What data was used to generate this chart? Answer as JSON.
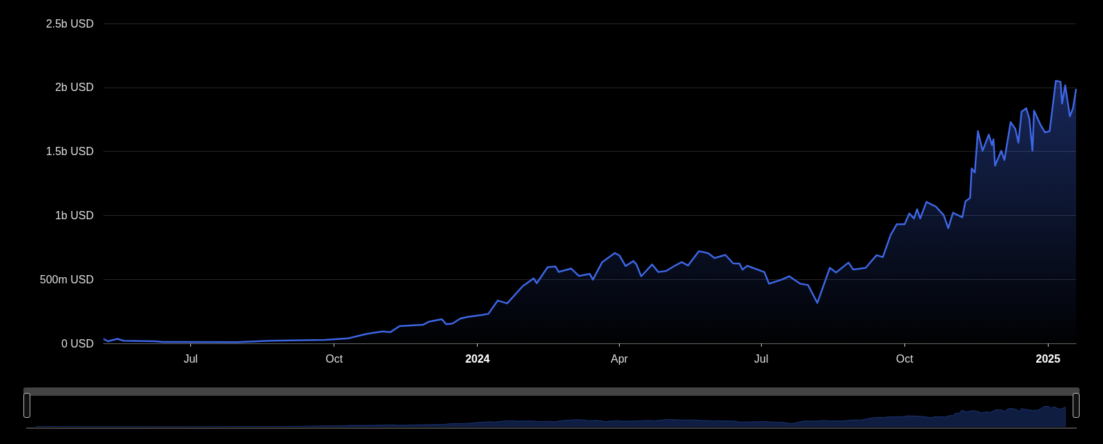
{
  "chart_data": {
    "type": "area",
    "xlim": [
      "2023-05-06",
      "2025-01-19"
    ],
    "xticks": [
      {
        "value": "2023-07-01",
        "label": "Jul"
      },
      {
        "value": "2023-10-01",
        "label": "Oct"
      },
      {
        "value": "2024-01-01",
        "label": "2024"
      },
      {
        "value": "2024-04-01",
        "label": "Apr"
      },
      {
        "value": "2024-07-01",
        "label": "Jul"
      },
      {
        "value": "2024-10-01",
        "label": "Oct"
      },
      {
        "value": "2025-01-01",
        "label": "2025"
      }
    ],
    "ylim": [
      0,
      2500000000
    ],
    "yticks": [
      {
        "value": 0,
        "label": "0 USD"
      },
      {
        "value": 500000000,
        "label": "500m USD"
      },
      {
        "value": 1000000000,
        "label": "1b USD"
      },
      {
        "value": 1500000000,
        "label": "1.5b USD"
      },
      {
        "value": 2000000000,
        "label": "2b USD"
      },
      {
        "value": 2500000000,
        "label": "2.5b USD"
      }
    ],
    "grid": "y",
    "series": [
      {
        "color": "#3d66e6",
        "x": [
          "2023-05-06",
          "2023-05-09",
          "2023-05-15",
          "2023-05-19",
          "2023-06-08",
          "2023-06-13",
          "2023-07-31",
          "2023-08-21",
          "2023-09-25",
          "2023-10-10",
          "2023-10-22",
          "2023-11-01",
          "2023-11-06",
          "2023-11-12",
          "2023-11-27",
          "2023-12-01",
          "2023-12-09",
          "2023-12-12",
          "2023-12-16",
          "2023-12-21",
          "2023-12-26",
          "2024-01-04",
          "2024-01-08",
          "2024-01-14",
          "2024-01-20",
          "2024-01-30",
          "2024-02-06",
          "2024-02-08",
          "2024-02-15",
          "2024-02-20",
          "2024-02-22",
          "2024-03-01",
          "2024-03-06",
          "2024-03-13",
          "2024-03-15",
          "2024-03-21",
          "2024-03-29",
          "2024-04-01",
          "2024-04-05",
          "2024-04-10",
          "2024-04-12",
          "2024-04-15",
          "2024-04-22",
          "2024-04-26",
          "2024-05-01",
          "2024-05-07",
          "2024-05-11",
          "2024-05-15",
          "2024-05-22",
          "2024-05-28",
          "2024-06-01",
          "2024-06-08",
          "2024-06-13",
          "2024-06-17",
          "2024-06-19",
          "2024-06-22",
          "2024-07-03",
          "2024-07-06",
          "2024-07-14",
          "2024-07-19",
          "2024-07-26",
          "2024-07-31",
          "2024-08-06",
          "2024-08-14",
          "2024-08-18",
          "2024-08-26",
          "2024-08-29",
          "2024-09-06",
          "2024-09-13",
          "2024-09-17",
          "2024-09-22",
          "2024-09-26",
          "2024-10-01",
          "2024-10-04",
          "2024-10-07",
          "2024-10-09",
          "2024-10-11",
          "2024-10-15",
          "2024-10-21",
          "2024-10-26",
          "2024-10-29",
          "2024-11-01",
          "2024-11-07",
          "2024-11-09",
          "2024-11-12",
          "2024-11-13",
          "2024-11-15",
          "2024-11-17",
          "2024-11-20",
          "2024-11-24",
          "2024-11-26",
          "2024-11-27",
          "2024-11-28",
          "2024-12-02",
          "2024-12-04",
          "2024-12-08",
          "2024-12-11",
          "2024-12-13",
          "2024-12-15",
          "2024-12-18",
          "2024-12-20",
          "2024-12-22",
          "2024-12-23",
          "2024-12-27",
          "2024-12-30",
          "2025-01-02",
          "2025-01-06",
          "2025-01-09",
          "2025-01-10",
          "2025-01-12",
          "2025-01-15",
          "2025-01-17",
          "2025-01-19"
        ],
        "values": [
          35000000,
          16000000,
          35000000,
          20000000,
          16000000,
          11000000,
          9000000,
          20000000,
          27000000,
          39000000,
          74000000,
          93000000,
          87000000,
          135000000,
          145000000,
          170000000,
          189000000,
          149000000,
          155000000,
          194000000,
          207000000,
          222000000,
          231000000,
          335000000,
          312000000,
          447000000,
          508000000,
          470000000,
          595000000,
          601000000,
          558000000,
          585000000,
          527000000,
          543000000,
          498000000,
          635000000,
          706000000,
          687000000,
          604000000,
          643000000,
          616000000,
          524000000,
          616000000,
          557000000,
          566000000,
          610000000,
          635000000,
          608000000,
          720000000,
          705000000,
          667000000,
          691000000,
          625000000,
          624000000,
          576000000,
          606000000,
          557000000,
          466000000,
          498000000,
          524000000,
          466000000,
          456000000,
          316000000,
          590000000,
          554000000,
          631000000,
          577000000,
          590000000,
          689000000,
          674000000,
          847000000,
          931000000,
          931000000,
          1015000000,
          976000000,
          1048000000,
          976000000,
          1105000000,
          1069000000,
          1003000000,
          900000000,
          1021000000,
          985000000,
          1110000000,
          1137000000,
          1367000000,
          1335000000,
          1658000000,
          1505000000,
          1631000000,
          1550000000,
          1595000000,
          1389000000,
          1505000000,
          1433000000,
          1729000000,
          1676000000,
          1568000000,
          1810000000,
          1837000000,
          1756000000,
          1505000000,
          1819000000,
          1712000000,
          1649000000,
          1658000000,
          2052000000,
          2043000000,
          1873000000,
          2016000000,
          1774000000,
          1837000000,
          1989000000
        ]
      }
    ]
  }
}
